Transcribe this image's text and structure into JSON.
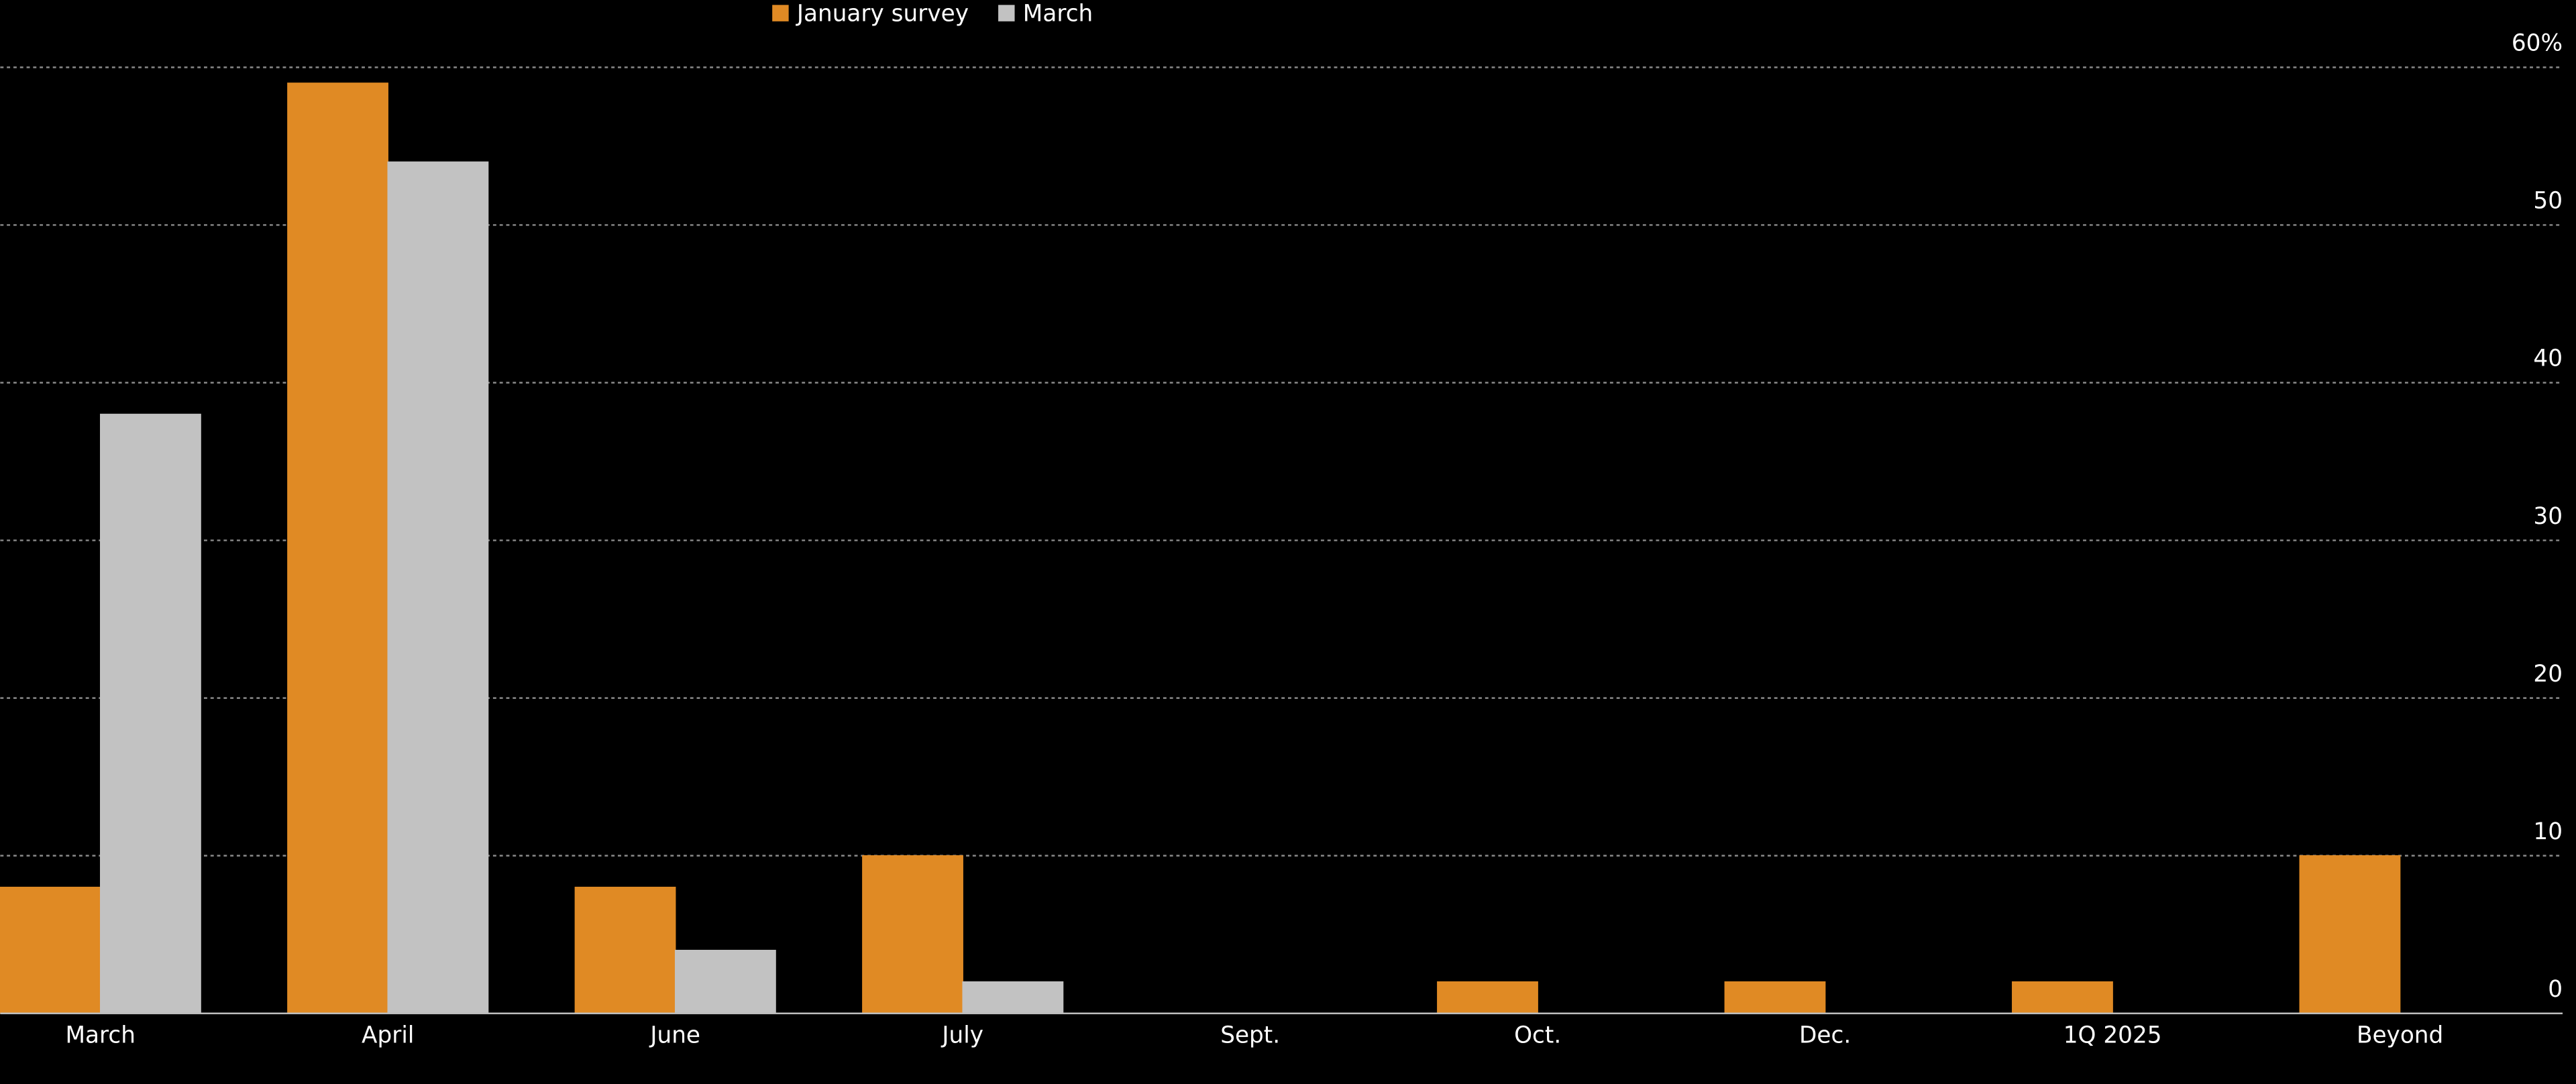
{
  "chart_data": {
    "type": "bar",
    "categories": [
      "March",
      "April",
      "June",
      "July",
      "Sept.",
      "Oct.",
      "Dec.",
      "1Q 2025",
      "Beyond"
    ],
    "series": [
      {
        "name": "January survey",
        "color": "#e08a24",
        "values": [
          8,
          59,
          8,
          10,
          0,
          2,
          2,
          2,
          10
        ]
      },
      {
        "name": "March",
        "color": "#c2c2c2",
        "values": [
          38,
          54,
          4,
          2,
          0,
          0,
          0,
          0,
          0
        ]
      }
    ],
    "ylim": [
      0,
      60
    ],
    "yticks": [
      0,
      10,
      20,
      30,
      40,
      50,
      {
        "value": 60,
        "label": "60%"
      }
    ],
    "grid": true
  }
}
